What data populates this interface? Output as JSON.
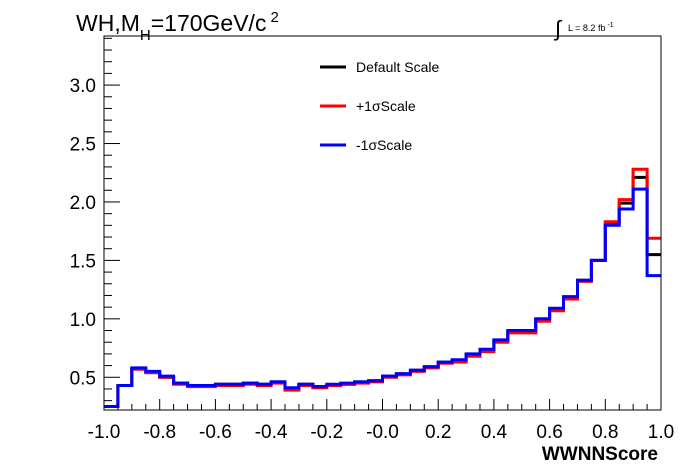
{
  "chart_data": {
    "type": "line",
    "style": "step-histogram",
    "title": {
      "main": "WH,M",
      "sub": "H",
      "rest": "=170GeV/c",
      "sup": "2"
    },
    "luminosity": {
      "integral": "∫",
      "text": "L = 8.2 fb",
      "sup": "-1"
    },
    "xlabel": "WWNNScore",
    "ylabel": "",
    "xlim": [
      -1.0,
      1.0
    ],
    "ylim": [
      0.22,
      3.42
    ],
    "x_ticks": [
      -1.0,
      -0.8,
      -0.6,
      -0.4,
      -0.2,
      0.0,
      0.2,
      0.4,
      0.6,
      0.8,
      1.0
    ],
    "x_tick_labels": [
      "-1.0",
      "-0.8",
      "-0.6",
      "-0.4",
      "-0.2",
      "-0.0",
      "0.2",
      "0.4",
      "0.6",
      "0.8",
      "1.0"
    ],
    "y_ticks": [
      0.5,
      1.0,
      1.5,
      2.0,
      2.5,
      3.0
    ],
    "y_tick_labels": [
      "0.5",
      "1.0",
      "1.5",
      "2.0",
      "2.5",
      "3.0"
    ],
    "grid": false,
    "legend_position": "top-center",
    "bin_edges": [
      -1.0,
      -0.95,
      -0.9,
      -0.85,
      -0.8,
      -0.75,
      -0.7,
      -0.65,
      -0.6,
      -0.55,
      -0.5,
      -0.45,
      -0.4,
      -0.35,
      -0.3,
      -0.25,
      -0.2,
      -0.15,
      -0.1,
      -0.05,
      0.0,
      0.05,
      0.1,
      0.15,
      0.2,
      0.25,
      0.3,
      0.35,
      0.4,
      0.45,
      0.5,
      0.55,
      0.6,
      0.65,
      0.7,
      0.75,
      0.8,
      0.85,
      0.9,
      0.95,
      1.0
    ],
    "series": [
      {
        "name": "Default Scale",
        "color": "#000000",
        "values": [
          0.25,
          0.43,
          0.57,
          0.54,
          0.5,
          0.45,
          0.43,
          0.43,
          0.44,
          0.44,
          0.45,
          0.44,
          0.46,
          0.4,
          0.44,
          0.42,
          0.43,
          0.44,
          0.46,
          0.47,
          0.51,
          0.53,
          0.56,
          0.59,
          0.63,
          0.64,
          0.69,
          0.73,
          0.81,
          0.89,
          0.89,
          0.99,
          1.08,
          1.18,
          1.33,
          1.5,
          1.82,
          1.99,
          2.21,
          1.55
        ]
      },
      {
        "name": "+1σScale",
        "color": "#ff0000",
        "values": [
          0.25,
          0.43,
          0.57,
          0.54,
          0.5,
          0.44,
          0.42,
          0.42,
          0.43,
          0.43,
          0.44,
          0.43,
          0.45,
          0.39,
          0.43,
          0.41,
          0.43,
          0.44,
          0.45,
          0.46,
          0.5,
          0.52,
          0.55,
          0.58,
          0.62,
          0.63,
          0.68,
          0.72,
          0.8,
          0.88,
          0.88,
          0.98,
          1.07,
          1.17,
          1.32,
          1.5,
          1.83,
          2.02,
          2.28,
          1.69
        ]
      },
      {
        "name": "-1σScale",
        "color": "#0000ff",
        "values": [
          0.25,
          0.43,
          0.58,
          0.55,
          0.51,
          0.45,
          0.43,
          0.43,
          0.44,
          0.44,
          0.45,
          0.44,
          0.46,
          0.41,
          0.44,
          0.42,
          0.44,
          0.45,
          0.46,
          0.47,
          0.51,
          0.53,
          0.56,
          0.59,
          0.63,
          0.65,
          0.7,
          0.74,
          0.82,
          0.9,
          0.9,
          1.0,
          1.09,
          1.19,
          1.33,
          1.5,
          1.8,
          1.94,
          2.11,
          1.37
        ]
      }
    ]
  }
}
